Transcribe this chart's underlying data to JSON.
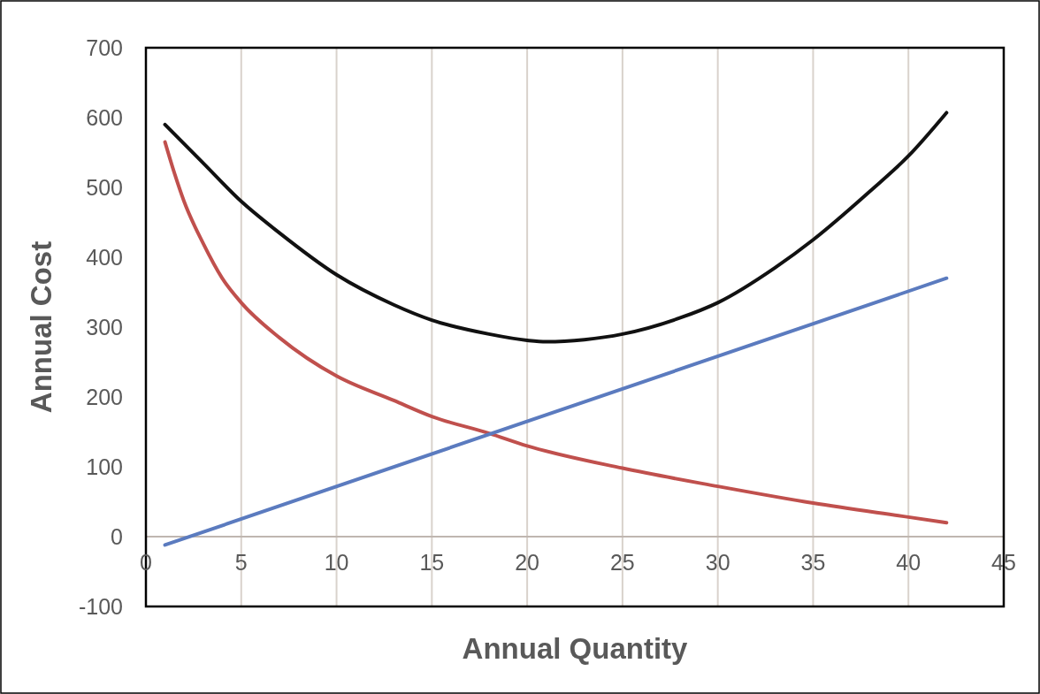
{
  "chart_data": {
    "type": "line",
    "xlabel": "Annual Quantity",
    "ylabel": "Annual Cost",
    "xlim": [
      0,
      45
    ],
    "xticks": [
      0,
      5,
      10,
      15,
      20,
      25,
      30,
      35,
      40,
      45
    ],
    "ylim": [
      -100,
      700
    ],
    "yticks": [
      -100,
      0,
      100,
      200,
      300,
      400,
      500,
      600,
      700
    ],
    "grid": "x",
    "marker": "none",
    "line_style": "solid",
    "series": [
      {
        "color": "#111111",
        "x": [
          1,
          3,
          5,
          7,
          10,
          13,
          15,
          18,
          20,
          21,
          23,
          25,
          28,
          30,
          33,
          35,
          38,
          40,
          42
        ],
        "values": [
          590,
          535,
          480,
          435,
          375,
          332,
          310,
          290,
          281,
          279,
          282,
          290,
          313,
          335,
          385,
          425,
          495,
          545,
          607
        ]
      },
      {
        "color": "#c0504d",
        "x": [
          1,
          1.5,
          2,
          3,
          4,
          5,
          7,
          10,
          13,
          15,
          18,
          20,
          25,
          30,
          35,
          40,
          42
        ],
        "values": [
          565,
          520,
          480,
          420,
          370,
          335,
          285,
          230,
          195,
          172,
          148,
          130,
          98,
          72,
          48,
          28,
          20
        ]
      },
      {
        "color": "#5b7bbf",
        "x": [
          1,
          42
        ],
        "values": [
          -12,
          370
        ]
      }
    ]
  }
}
